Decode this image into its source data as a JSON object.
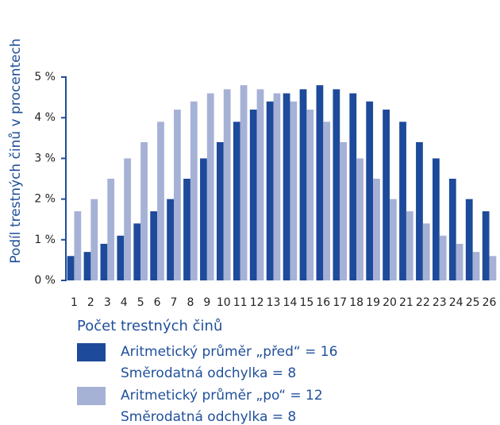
{
  "chart_data": {
    "type": "bar",
    "y_label": "Podíl trestných činů v procentech",
    "x_label": "Počet trestných činů",
    "categories": [
      1,
      2,
      3,
      4,
      5,
      6,
      7,
      8,
      9,
      10,
      11,
      12,
      13,
      14,
      15,
      16,
      17,
      18,
      19,
      20,
      21,
      22,
      23,
      24,
      25,
      26
    ],
    "series": [
      {
        "name": "Aritmetický průměr „před“ = 16",
        "note": "Směrodatná odchylka = 8",
        "color": "#1d4a9a",
        "values": [
          0.6,
          0.7,
          0.9,
          1.1,
          1.4,
          1.7,
          2.0,
          2.5,
          3.0,
          3.4,
          3.9,
          4.2,
          4.4,
          4.6,
          4.7,
          4.8,
          4.7,
          4.6,
          4.4,
          4.2,
          3.9,
          3.4,
          3.0,
          2.5,
          2.0,
          1.7
        ]
      },
      {
        "name": "Aritmetický průměr „po“ = 12",
        "note": "Směrodatná odchylka = 8",
        "color": "#a6b1d6",
        "values": [
          1.7,
          2.0,
          2.5,
          3.0,
          3.4,
          3.9,
          4.2,
          4.4,
          4.6,
          4.7,
          4.8,
          4.7,
          4.6,
          4.4,
          4.2,
          3.9,
          3.4,
          3.0,
          2.5,
          2.0,
          1.7,
          1.4,
          1.1,
          0.9,
          0.7,
          0.6
        ]
      }
    ],
    "ylim": [
      0,
      5
    ],
    "yticks": [
      {
        "value": 0,
        "label": "0 %"
      },
      {
        "value": 1,
        "label": "1 %"
      },
      {
        "value": 2,
        "label": "2 %"
      },
      {
        "value": 3,
        "label": "3 %"
      },
      {
        "value": 4,
        "label": "4 %"
      },
      {
        "value": 5,
        "label": "5 %"
      }
    ],
    "grid": false
  }
}
